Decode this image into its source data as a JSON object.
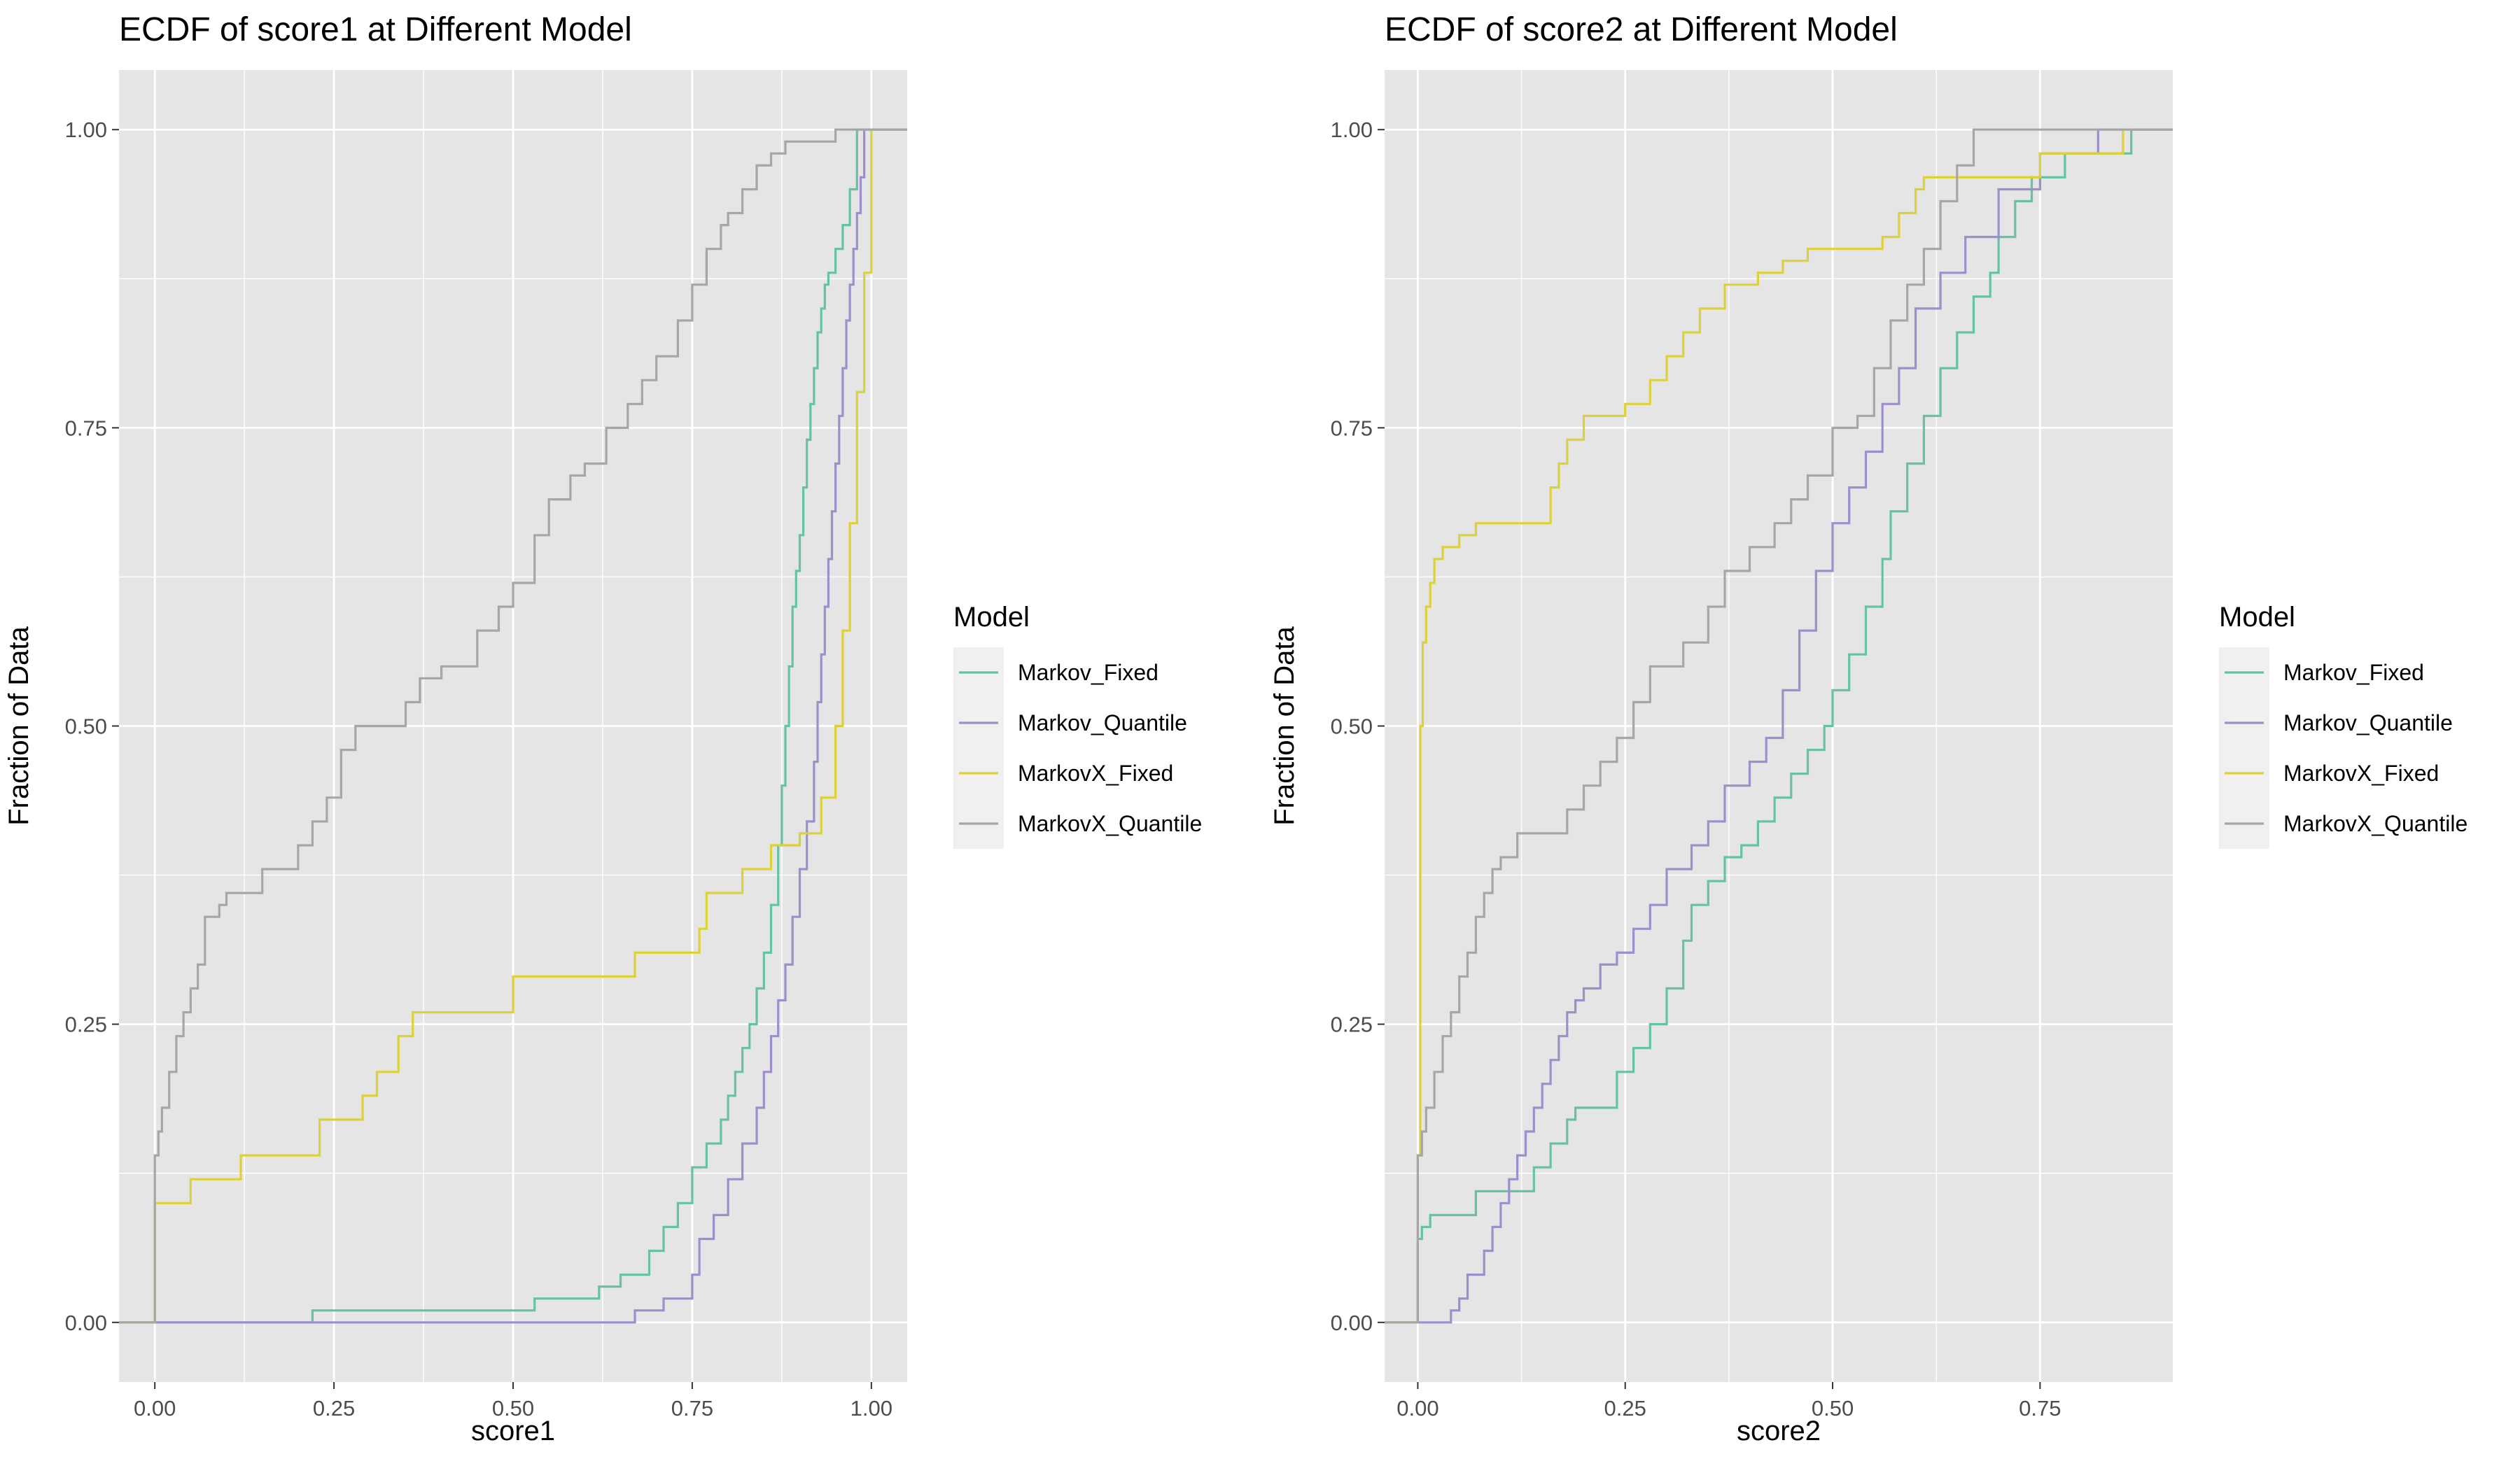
{
  "legend_title": "Model",
  "series_colors": {
    "Markov_Fixed": "#66C2A5",
    "Markov_Quantile": "#9E8FCB",
    "MarkovX_Fixed": "#DDD139",
    "MarkovX_Quantile": "#A6A6A6"
  },
  "styles": {
    "panel_background": "#E5E5E5",
    "grid_color": "#FFFFFF",
    "legend_key_background": "#F0F0F0"
  },
  "chart_data": [
    {
      "type": "line",
      "subtype": "ecdf-step",
      "title": "ECDF of score1  at Different Model",
      "xlabel": "score1",
      "ylabel": "Fraction of Data",
      "xlim": [
        -0.05,
        1.05
      ],
      "ylim": [
        -0.05,
        1.05
      ],
      "x_ticks": [
        0,
        0.25,
        0.5,
        0.75,
        1
      ],
      "x_tick_labels": [
        "0.00",
        "0.25",
        "0.50",
        "0.75",
        "1.00"
      ],
      "y_ticks": [
        0,
        0.25,
        0.5,
        0.75,
        1
      ],
      "y_tick_labels": [
        "0.00",
        "0.25",
        "0.50",
        "0.75",
        "1.00"
      ],
      "grid": true,
      "legend": "right",
      "series": [
        {
          "name": "Markov_Fixed",
          "x": [
            0.21,
            0.22,
            0.53,
            0.62,
            0.65,
            0.69,
            0.71,
            0.73,
            0.75,
            0.77,
            0.79,
            0.8,
            0.81,
            0.82,
            0.83,
            0.84,
            0.85,
            0.86,
            0.87,
            0.875,
            0.88,
            0.885,
            0.89,
            0.895,
            0.9,
            0.905,
            0.91,
            0.915,
            0.92,
            0.925,
            0.93,
            0.935,
            0.94,
            0.95,
            0.96,
            0.97,
            0.98
          ],
          "y": [
            0.0,
            0.01,
            0.02,
            0.03,
            0.04,
            0.06,
            0.08,
            0.1,
            0.13,
            0.15,
            0.17,
            0.19,
            0.21,
            0.23,
            0.25,
            0.28,
            0.31,
            0.35,
            0.4,
            0.45,
            0.5,
            0.55,
            0.6,
            0.63,
            0.66,
            0.7,
            0.74,
            0.77,
            0.8,
            0.83,
            0.85,
            0.87,
            0.88,
            0.9,
            0.92,
            0.95,
            1.0
          ],
          "x_end": 1.05
        },
        {
          "name": "Markov_Quantile",
          "x": [
            0.2,
            0.67,
            0.71,
            0.75,
            0.76,
            0.78,
            0.8,
            0.82,
            0.84,
            0.85,
            0.86,
            0.87,
            0.88,
            0.89,
            0.9,
            0.91,
            0.92,
            0.925,
            0.93,
            0.935,
            0.94,
            0.945,
            0.95,
            0.955,
            0.96,
            0.965,
            0.97,
            0.975,
            0.98,
            0.985,
            0.99
          ],
          "y": [
            0.0,
            0.01,
            0.02,
            0.04,
            0.07,
            0.09,
            0.12,
            0.15,
            0.18,
            0.21,
            0.24,
            0.27,
            0.3,
            0.34,
            0.38,
            0.42,
            0.47,
            0.52,
            0.56,
            0.6,
            0.64,
            0.68,
            0.72,
            0.76,
            0.8,
            0.84,
            0.87,
            0.9,
            0.93,
            0.96,
            1.0
          ],
          "x_end": 1.05
        },
        {
          "name": "MarkovX_Fixed",
          "x": [
            0.0,
            0.0,
            0.05,
            0.12,
            0.23,
            0.29,
            0.31,
            0.34,
            0.36,
            0.5,
            0.67,
            0.76,
            0.77,
            0.82,
            0.86,
            0.9,
            0.93,
            0.95,
            0.96,
            0.97,
            0.98,
            0.99,
            1.0
          ],
          "y": [
            0.0,
            0.1,
            0.12,
            0.14,
            0.17,
            0.19,
            0.21,
            0.24,
            0.26,
            0.29,
            0.31,
            0.33,
            0.36,
            0.38,
            0.4,
            0.41,
            0.44,
            0.5,
            0.58,
            0.67,
            0.78,
            0.88,
            1.0
          ],
          "x_end": 1.05
        },
        {
          "name": "MarkovX_Quantile",
          "x": [
            0.0,
            0.0,
            0.005,
            0.01,
            0.02,
            0.03,
            0.04,
            0.05,
            0.06,
            0.07,
            0.09,
            0.1,
            0.12,
            0.15,
            0.18,
            0.2,
            0.22,
            0.24,
            0.26,
            0.28,
            0.3,
            0.35,
            0.37,
            0.4,
            0.45,
            0.48,
            0.5,
            0.53,
            0.55,
            0.58,
            0.6,
            0.63,
            0.66,
            0.68,
            0.7,
            0.73,
            0.75,
            0.77,
            0.79,
            0.8,
            0.82,
            0.84,
            0.86,
            0.88,
            0.9,
            0.95
          ],
          "y": [
            0.0,
            0.14,
            0.16,
            0.18,
            0.21,
            0.24,
            0.26,
            0.28,
            0.3,
            0.34,
            0.35,
            0.36,
            0.36,
            0.38,
            0.38,
            0.4,
            0.42,
            0.44,
            0.48,
            0.5,
            0.5,
            0.52,
            0.54,
            0.55,
            0.58,
            0.6,
            0.62,
            0.66,
            0.69,
            0.71,
            0.72,
            0.75,
            0.77,
            0.79,
            0.81,
            0.84,
            0.87,
            0.9,
            0.92,
            0.93,
            0.95,
            0.97,
            0.98,
            0.99,
            0.99,
            1.0
          ],
          "x_end": 1.05
        }
      ]
    },
    {
      "type": "line",
      "subtype": "ecdf-step",
      "title": "ECDF of score2  at Different Model",
      "xlabel": "score2",
      "ylabel": "Fraction of Data",
      "xlim": [
        -0.04,
        0.91
      ],
      "ylim": [
        -0.05,
        1.05
      ],
      "x_ticks": [
        0,
        0.25,
        0.5,
        0.75
      ],
      "x_tick_labels": [
        "0.00",
        "0.25",
        "0.50",
        "0.75"
      ],
      "y_ticks": [
        0,
        0.25,
        0.5,
        0.75,
        1
      ],
      "y_tick_labels": [
        "0.00",
        "0.25",
        "0.50",
        "0.75",
        "1.00"
      ],
      "grid": true,
      "legend": "right",
      "series": [
        {
          "name": "Markov_Fixed",
          "x": [
            0.0,
            0.0,
            0.005,
            0.015,
            0.07,
            0.14,
            0.16,
            0.18,
            0.19,
            0.2,
            0.24,
            0.26,
            0.28,
            0.3,
            0.32,
            0.33,
            0.35,
            0.37,
            0.39,
            0.41,
            0.43,
            0.45,
            0.47,
            0.49,
            0.5,
            0.52,
            0.54,
            0.56,
            0.57,
            0.59,
            0.61,
            0.63,
            0.65,
            0.67,
            0.69,
            0.7,
            0.72,
            0.74,
            0.78,
            0.86
          ],
          "y": [
            0.0,
            0.07,
            0.08,
            0.09,
            0.11,
            0.13,
            0.15,
            0.17,
            0.18,
            0.18,
            0.21,
            0.23,
            0.25,
            0.28,
            0.32,
            0.35,
            0.37,
            0.39,
            0.4,
            0.42,
            0.44,
            0.46,
            0.48,
            0.5,
            0.53,
            0.56,
            0.6,
            0.64,
            0.68,
            0.72,
            0.76,
            0.8,
            0.83,
            0.86,
            0.88,
            0.91,
            0.94,
            0.96,
            0.98,
            1.0
          ],
          "x_end": 0.91
        },
        {
          "name": "Markov_Quantile",
          "x": [
            0.02,
            0.04,
            0.05,
            0.06,
            0.08,
            0.09,
            0.1,
            0.11,
            0.12,
            0.13,
            0.14,
            0.15,
            0.16,
            0.17,
            0.18,
            0.19,
            0.2,
            0.22,
            0.24,
            0.26,
            0.28,
            0.3,
            0.33,
            0.35,
            0.37,
            0.4,
            0.42,
            0.44,
            0.46,
            0.48,
            0.5,
            0.52,
            0.54,
            0.56,
            0.58,
            0.6,
            0.63,
            0.66,
            0.7,
            0.75,
            0.82
          ],
          "y": [
            0.0,
            0.01,
            0.02,
            0.04,
            0.06,
            0.08,
            0.1,
            0.12,
            0.14,
            0.16,
            0.18,
            0.2,
            0.22,
            0.24,
            0.26,
            0.27,
            0.28,
            0.3,
            0.31,
            0.33,
            0.35,
            0.38,
            0.4,
            0.42,
            0.45,
            0.47,
            0.49,
            0.53,
            0.58,
            0.63,
            0.67,
            0.7,
            0.73,
            0.77,
            0.8,
            0.85,
            0.88,
            0.91,
            0.95,
            0.98,
            1.0
          ],
          "x_end": 0.91
        },
        {
          "name": "MarkovX_Fixed",
          "x": [
            0.0,
            0.0,
            0.003,
            0.006,
            0.01,
            0.015,
            0.02,
            0.03,
            0.05,
            0.07,
            0.16,
            0.17,
            0.18,
            0.2,
            0.25,
            0.28,
            0.3,
            0.32,
            0.34,
            0.37,
            0.41,
            0.44,
            0.47,
            0.51,
            0.56,
            0.58,
            0.6,
            0.61,
            0.63,
            0.72,
            0.75,
            0.85
          ],
          "y": [
            0.0,
            0.14,
            0.5,
            0.57,
            0.6,
            0.62,
            0.64,
            0.65,
            0.66,
            0.67,
            0.7,
            0.72,
            0.74,
            0.76,
            0.77,
            0.79,
            0.81,
            0.83,
            0.85,
            0.87,
            0.88,
            0.89,
            0.9,
            0.9,
            0.91,
            0.93,
            0.95,
            0.96,
            0.96,
            0.96,
            0.98,
            1.0
          ],
          "x_end": 0.91
        },
        {
          "name": "MarkovX_Quantile",
          "x": [
            0.0,
            0.0,
            0.005,
            0.01,
            0.02,
            0.03,
            0.04,
            0.05,
            0.06,
            0.07,
            0.08,
            0.09,
            0.1,
            0.12,
            0.16,
            0.18,
            0.2,
            0.22,
            0.24,
            0.26,
            0.28,
            0.32,
            0.35,
            0.37,
            0.4,
            0.43,
            0.45,
            0.47,
            0.5,
            0.53,
            0.55,
            0.57,
            0.59,
            0.61,
            0.63,
            0.65,
            0.67
          ],
          "y": [
            0.0,
            0.14,
            0.16,
            0.18,
            0.21,
            0.24,
            0.26,
            0.29,
            0.31,
            0.34,
            0.36,
            0.38,
            0.39,
            0.41,
            0.41,
            0.43,
            0.45,
            0.47,
            0.49,
            0.52,
            0.55,
            0.57,
            0.6,
            0.63,
            0.65,
            0.67,
            0.69,
            0.71,
            0.75,
            0.76,
            0.8,
            0.84,
            0.87,
            0.9,
            0.94,
            0.97,
            1.0
          ],
          "x_end": 0.91
        }
      ]
    }
  ]
}
